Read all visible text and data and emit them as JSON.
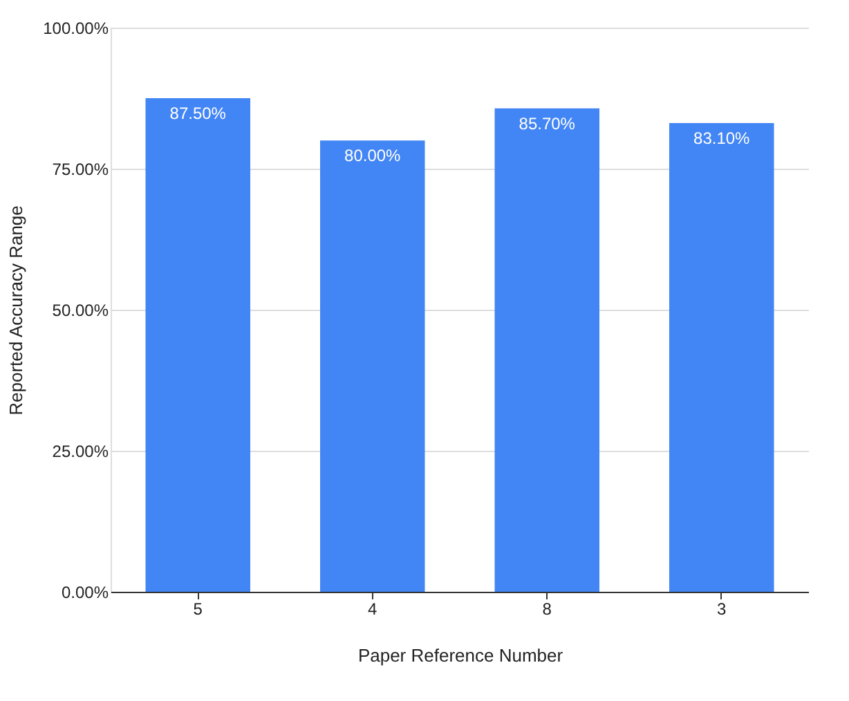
{
  "chart_data": {
    "type": "bar",
    "xlabel": "Paper Reference Number",
    "ylabel": "Reported Accuracy Range",
    "categories": [
      "5",
      "4",
      "8",
      "3"
    ],
    "values": [
      87.5,
      80,
      85.7,
      83.1
    ],
    "value_labels": [
      "87.50%",
      "80.00%",
      "85.70%",
      "83.10%"
    ],
    "color": "#4285f4",
    "ylim": [
      0,
      100
    ],
    "yticks": [
      {
        "value": 0,
        "label": "0.00%"
      },
      {
        "value": 25,
        "label": "25.00%"
      },
      {
        "value": 50,
        "label": "50.00%"
      },
      {
        "value": 75,
        "label": "75.00%"
      },
      {
        "value": 100,
        "label": "100.00%"
      }
    ],
    "grid": "y"
  }
}
